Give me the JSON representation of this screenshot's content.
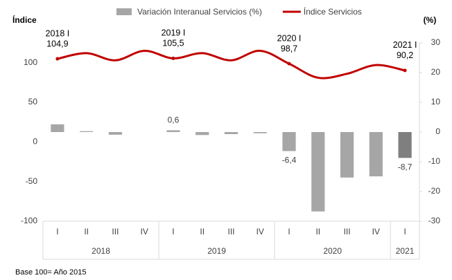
{
  "chart_data": {
    "type": "bar_line",
    "y_label": "Índice",
    "y2_label": "(%)",
    "footnote": "Base 100= Año 2015",
    "categories": [
      "I",
      "II",
      "III",
      "IV",
      "I",
      "II",
      "III",
      "IV",
      "I",
      "II",
      "III",
      "IV",
      "I"
    ],
    "year_groups": [
      {
        "label": "2018",
        "size": 4
      },
      {
        "label": "2019",
        "size": 4
      },
      {
        "label": "2020",
        "size": 4
      },
      {
        "label": "2021",
        "size": 1
      }
    ],
    "ylim": [
      -100,
      125
    ],
    "yticks": [
      -100,
      -50,
      0,
      50,
      100
    ],
    "y2lim": [
      -30,
      30
    ],
    "y2ticks": [
      -30,
      -20,
      -10,
      0,
      10,
      20,
      30
    ],
    "series": [
      {
        "name": "Variación Interanual Servicios (%)",
        "kind": "bar",
        "axis": "y2",
        "color": "#a6a6a6",
        "colors": [
          "#a6a6a6",
          "#a6a6a6",
          "#a6a6a6",
          "#a6a6a6",
          "#a6a6a6",
          "#a6a6a6",
          "#a6a6a6",
          "#a6a6a6",
          "#a6a6a6",
          "#a6a6a6",
          "#a6a6a6",
          "#a6a6a6",
          "#7f7f7f"
        ],
        "values": [
          2.6,
          0.3,
          -0.9,
          0,
          0.6,
          -1.0,
          -0.7,
          -0.4,
          -6.4,
          -26.7,
          -15.3,
          -14.9,
          -8.7
        ],
        "value_labels": [
          null,
          null,
          null,
          null,
          "0,6",
          null,
          null,
          null,
          "-6,4",
          null,
          null,
          null,
          "-8,7"
        ]
      },
      {
        "name": "Índice Servicios",
        "kind": "line",
        "axis": "y",
        "color": "#c00000",
        "values": [
          104.9,
          112,
          103,
          115,
          105.5,
          112,
          103,
          115,
          98.7,
          81,
          86,
          97,
          90.2
        ],
        "value_labels": [
          "104,9",
          null,
          null,
          null,
          "105,5",
          null,
          null,
          null,
          "98,7",
          null,
          null,
          null,
          "90,2"
        ],
        "point_tags": [
          "2018 I",
          null,
          null,
          null,
          "2019 I",
          null,
          null,
          null,
          "2020 I",
          null,
          null,
          null,
          "2021 I"
        ]
      }
    ]
  }
}
